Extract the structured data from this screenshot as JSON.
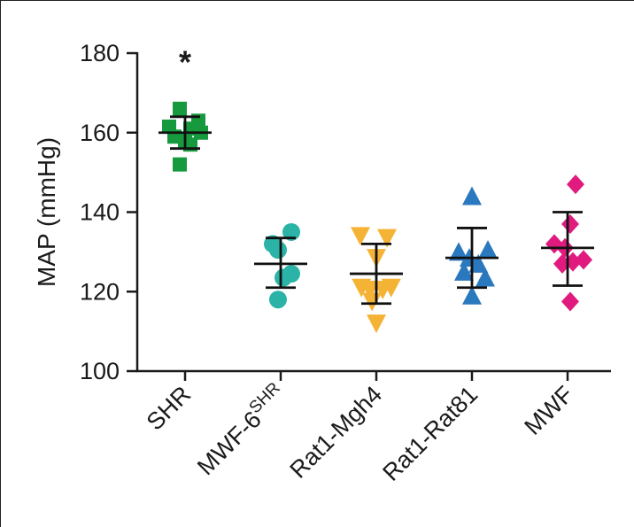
{
  "chart_data": {
    "type": "scatter",
    "ylabel": "MAP (mmHg)",
    "xlabel": "",
    "ylim": [
      100,
      180
    ],
    "yticks": [
      100,
      120,
      140,
      160,
      180
    ],
    "grid": false,
    "legend": "none",
    "categories": [
      {
        "label": "SHR",
        "sup": ""
      },
      {
        "label": "MWF-6",
        "sup": "SHR"
      },
      {
        "label": "Rat1-Mgh4",
        "sup": ""
      },
      {
        "label": "Rat1-Rat81",
        "sup": ""
      },
      {
        "label": "MWF",
        "sup": ""
      }
    ],
    "series": [
      {
        "category": "SHR",
        "marker": "square",
        "color": "#179a3d",
        "mean": 160,
        "sd_low": 156,
        "sd_high": 164,
        "points": [
          {
            "dx": -0.3,
            "y": 161.5
          },
          {
            "dx": -0.1,
            "y": 166
          },
          {
            "dx": -0.2,
            "y": 159
          },
          {
            "dx": 0.0,
            "y": 158
          },
          {
            "dx": -0.1,
            "y": 152
          },
          {
            "dx": 0.1,
            "y": 161
          },
          {
            "dx": 0.1,
            "y": 157
          },
          {
            "dx": 0.25,
            "y": 163
          },
          {
            "dx": 0.3,
            "y": 160
          }
        ]
      },
      {
        "category": "MWF-6SHR",
        "marker": "circle",
        "color": "#2ab3a6",
        "mean": 127,
        "sd_low": 121,
        "sd_high": 133.5,
        "points": [
          {
            "dx": -0.15,
            "y": 132
          },
          {
            "dx": -0.05,
            "y": 130.5
          },
          {
            "dx": 0.2,
            "y": 135
          },
          {
            "dx": 0.2,
            "y": 124.5
          },
          {
            "dx": 0.05,
            "y": 123.5
          },
          {
            "dx": -0.05,
            "y": 118
          }
        ]
      },
      {
        "category": "Rat1-Mgh4",
        "marker": "triangle-down",
        "color": "#f5b335",
        "mean": 124.5,
        "sd_low": 117,
        "sd_high": 132,
        "points": [
          {
            "dx": -0.3,
            "y": 134
          },
          {
            "dx": 0.2,
            "y": 133.5
          },
          {
            "dx": 0.0,
            "y": 128.5
          },
          {
            "dx": -0.28,
            "y": 121
          },
          {
            "dx": -0.12,
            "y": 120.5
          },
          {
            "dx": 0.12,
            "y": 120.5
          },
          {
            "dx": 0.28,
            "y": 121
          },
          {
            "dx": -0.08,
            "y": 117.5
          },
          {
            "dx": 0.0,
            "y": 112
          }
        ]
      },
      {
        "category": "Rat1-Rat81",
        "marker": "triangle-up",
        "color": "#2a78bd",
        "mean": 128.5,
        "sd_low": 121,
        "sd_high": 136,
        "points": [
          {
            "dx": 0.0,
            "y": 144
          },
          {
            "dx": -0.25,
            "y": 130
          },
          {
            "dx": 0.3,
            "y": 130.5
          },
          {
            "dx": -0.05,
            "y": 128.5
          },
          {
            "dx": 0.12,
            "y": 127
          },
          {
            "dx": -0.15,
            "y": 125
          },
          {
            "dx": 0.25,
            "y": 123.5
          },
          {
            "dx": 0.0,
            "y": 119
          }
        ]
      },
      {
        "category": "MWF",
        "marker": "diamond",
        "color": "#e01a7f",
        "mean": 131,
        "sd_low": 121.5,
        "sd_high": 140,
        "points": [
          {
            "dx": 0.15,
            "y": 147
          },
          {
            "dx": 0.05,
            "y": 137
          },
          {
            "dx": -0.25,
            "y": 132
          },
          {
            "dx": -0.05,
            "y": 131
          },
          {
            "dx": 0.3,
            "y": 128
          },
          {
            "dx": 0.1,
            "y": 127.5
          },
          {
            "dx": -0.1,
            "y": 127
          },
          {
            "dx": 0.05,
            "y": 117.5
          }
        ]
      }
    ],
    "annotations": [
      {
        "text": "*",
        "category": "SHR",
        "y": 179
      }
    ]
  }
}
